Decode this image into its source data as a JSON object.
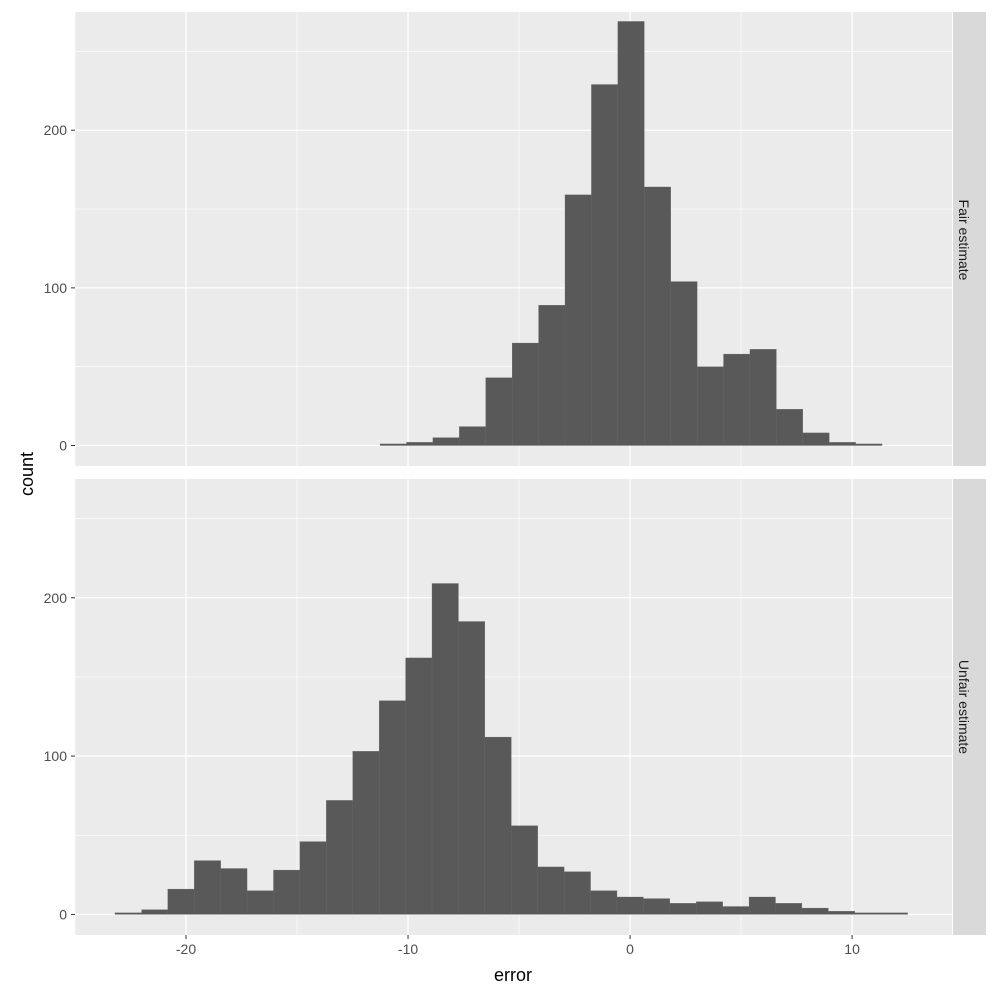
{
  "chart_data": {
    "type": "bar",
    "subtype": "faceted-histogram",
    "xlabel": "error",
    "ylabel": "count",
    "xlim": [
      -25,
      14.5
    ],
    "ylim": [
      -13,
      275
    ],
    "x_ticks": [
      -20,
      -10,
      0,
      10
    ],
    "x_tick_labels": [
      "-20",
      "-10",
      "0",
      "10"
    ],
    "y_ticks": [
      0,
      100,
      200
    ],
    "y_tick_labels": [
      "0",
      "100",
      "200"
    ],
    "grid": true,
    "bin_width": 1.19,
    "facets": [
      {
        "label": "Fair estimate",
        "bins": [
          {
            "x0": -11.26,
            "x1": -10.07,
            "count": 1
          },
          {
            "x0": -10.07,
            "x1": -8.88,
            "count": 2
          },
          {
            "x0": -8.88,
            "x1": -7.69,
            "count": 5
          },
          {
            "x0": -7.69,
            "x1": -6.5,
            "count": 12
          },
          {
            "x0": -6.5,
            "x1": -5.31,
            "count": 43
          },
          {
            "x0": -5.31,
            "x1": -4.12,
            "count": 65
          },
          {
            "x0": -4.12,
            "x1": -2.93,
            "count": 89
          },
          {
            "x0": -2.93,
            "x1": -1.74,
            "count": 159
          },
          {
            "x0": -1.74,
            "x1": -0.55,
            "count": 229
          },
          {
            "x0": -0.55,
            "x1": 0.64,
            "count": 269
          },
          {
            "x0": 0.64,
            "x1": 1.83,
            "count": 164
          },
          {
            "x0": 1.83,
            "x1": 3.02,
            "count": 104
          },
          {
            "x0": 3.02,
            "x1": 4.21,
            "count": 50
          },
          {
            "x0": 4.21,
            "x1": 5.4,
            "count": 58
          },
          {
            "x0": 5.4,
            "x1": 6.59,
            "count": 61
          },
          {
            "x0": 6.59,
            "x1": 7.78,
            "count": 23
          },
          {
            "x0": 7.78,
            "x1": 8.97,
            "count": 8
          },
          {
            "x0": 8.97,
            "x1": 10.16,
            "count": 2
          },
          {
            "x0": 10.16,
            "x1": 11.35,
            "count": 1
          }
        ]
      },
      {
        "label": "Unfair estimate",
        "bins": [
          {
            "x0": -23.2,
            "x1": -22.0,
            "count": 1
          },
          {
            "x0": -22.0,
            "x1": -20.82,
            "count": 3
          },
          {
            "x0": -20.82,
            "x1": -19.63,
            "count": 16
          },
          {
            "x0": -19.63,
            "x1": -18.44,
            "count": 34
          },
          {
            "x0": -18.44,
            "x1": -17.25,
            "count": 29
          },
          {
            "x0": -17.25,
            "x1": -16.06,
            "count": 15
          },
          {
            "x0": -16.06,
            "x1": -14.87,
            "count": 28
          },
          {
            "x0": -14.87,
            "x1": -13.68,
            "count": 46
          },
          {
            "x0": -13.68,
            "x1": -12.49,
            "count": 72
          },
          {
            "x0": -12.49,
            "x1": -11.3,
            "count": 103
          },
          {
            "x0": -11.3,
            "x1": -10.11,
            "count": 135
          },
          {
            "x0": -10.11,
            "x1": -8.92,
            "count": 162
          },
          {
            "x0": -8.92,
            "x1": -7.73,
            "count": 209
          },
          {
            "x0": -7.73,
            "x1": -6.54,
            "count": 185
          },
          {
            "x0": -6.54,
            "x1": -5.35,
            "count": 112
          },
          {
            "x0": -5.35,
            "x1": -4.16,
            "count": 56
          },
          {
            "x0": -4.16,
            "x1": -2.97,
            "count": 30
          },
          {
            "x0": -2.97,
            "x1": -1.78,
            "count": 27
          },
          {
            "x0": -1.78,
            "x1": -0.59,
            "count": 15
          },
          {
            "x0": -0.59,
            "x1": 0.6,
            "count": 11
          },
          {
            "x0": 0.6,
            "x1": 1.79,
            "count": 10
          },
          {
            "x0": 1.79,
            "x1": 2.98,
            "count": 7
          },
          {
            "x0": 2.98,
            "x1": 4.17,
            "count": 8
          },
          {
            "x0": 4.17,
            "x1": 5.36,
            "count": 5
          },
          {
            "x0": 5.36,
            "x1": 6.55,
            "count": 11
          },
          {
            "x0": 6.55,
            "x1": 7.74,
            "count": 7
          },
          {
            "x0": 7.74,
            "x1": 8.93,
            "count": 4
          },
          {
            "x0": 8.93,
            "x1": 10.12,
            "count": 2
          },
          {
            "x0": 10.12,
            "x1": 11.31,
            "count": 1
          },
          {
            "x0": 11.31,
            "x1": 12.5,
            "count": 1
          }
        ]
      }
    ],
    "colors": {
      "bar": "#595959",
      "panel_background": "#ebebeb",
      "grid_major": "#ffffff",
      "strip_background": "#d9d9d9",
      "tick_text": "#4d4d4d",
      "title_text": "#000000"
    }
  }
}
